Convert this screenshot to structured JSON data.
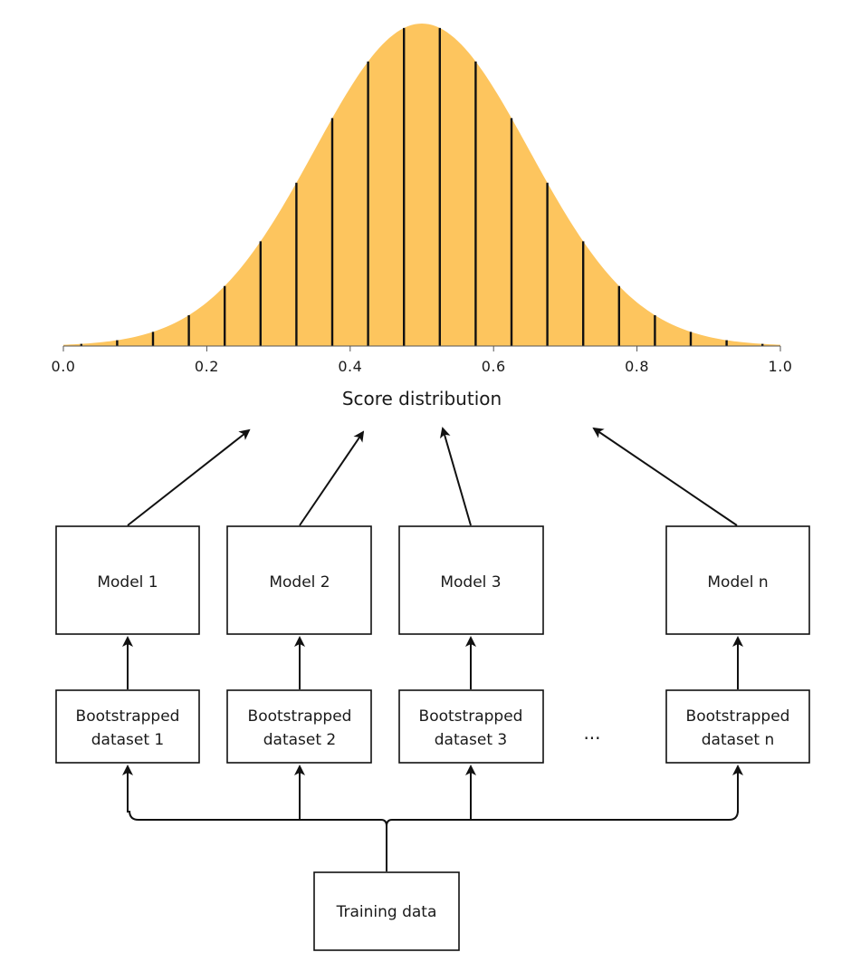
{
  "chart_data": {
    "type": "area",
    "distribution": "normal",
    "mean": 0.5,
    "std": 0.15,
    "xlim": [
      0.0,
      1.0
    ],
    "xticks": [
      "0.0",
      "0.2",
      "0.4",
      "0.6",
      "0.8",
      "1.0"
    ],
    "xlabel": "Score distribution",
    "bin_lines_x": [
      0.025,
      0.075,
      0.125,
      0.175,
      0.225,
      0.275,
      0.325,
      0.375,
      0.425,
      0.475,
      0.525,
      0.575,
      0.625,
      0.675,
      0.725,
      0.775,
      0.825,
      0.875,
      0.925,
      0.975
    ],
    "fill_color": "#fdc55e",
    "line_color": "#111111"
  },
  "models": [
    {
      "label": "Model 1",
      "dataset": [
        "Bootstrapped",
        "dataset 1"
      ]
    },
    {
      "label": "Model 2",
      "dataset": [
        "Bootstrapped",
        "dataset 2"
      ]
    },
    {
      "label": "Model 3",
      "dataset": [
        "Bootstrapped",
        "dataset 3"
      ]
    },
    {
      "label": "Model n",
      "dataset": [
        "Bootstrapped",
        "dataset n"
      ]
    }
  ],
  "ellipsis": "...",
  "training_data": "Training data"
}
